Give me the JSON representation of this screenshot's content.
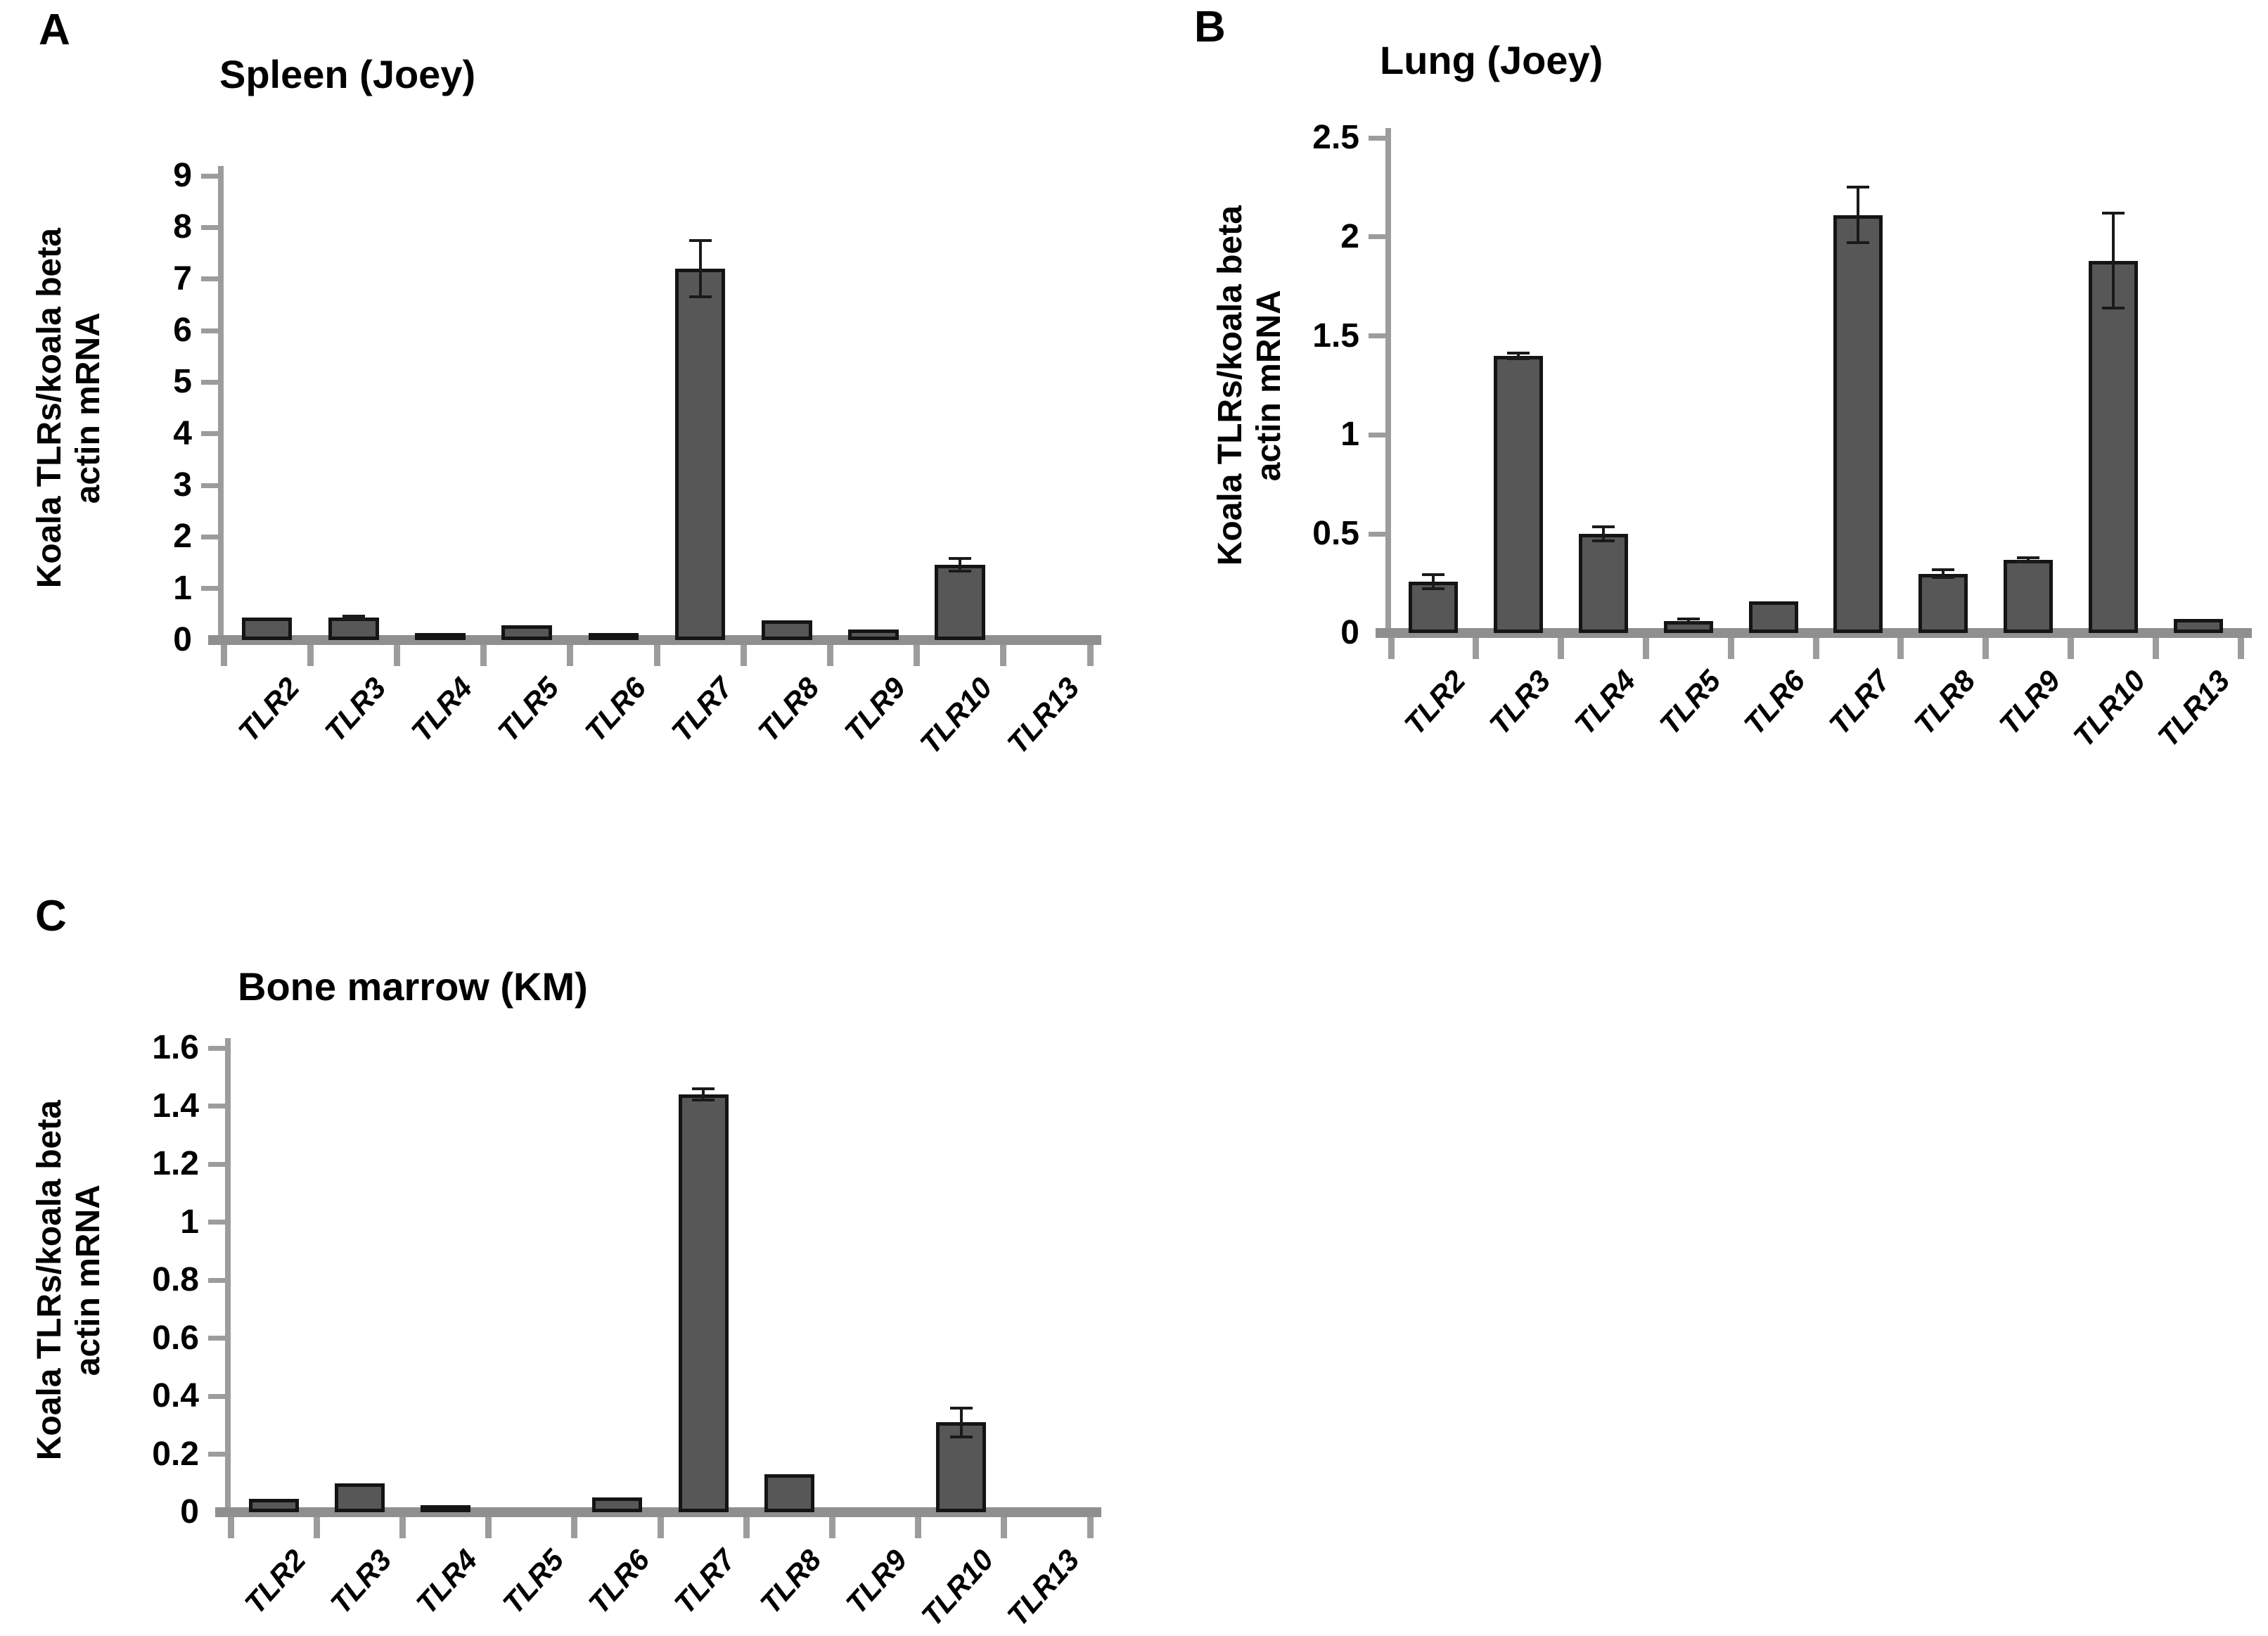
{
  "figure": {
    "panels": [
      {
        "label": "A"
      },
      {
        "label": "B"
      },
      {
        "label": "C"
      }
    ]
  },
  "style": {
    "bar_fill": "#575757",
    "bar_border": "#141414",
    "axis_color": "#9c9c9c",
    "text_color": "#000000",
    "background": "#ffffff"
  },
  "chart_data": [
    {
      "type": "bar",
      "panel": "A",
      "title": "Spleen (Joey)",
      "xlabel": "",
      "ylabel": "Koala TLRs/koala beta actin mRNA",
      "ylabel_lines": [
        "Koala TLRs/koala beta",
        "actin mRNA"
      ],
      "categories": [
        "TLR2",
        "TLR3",
        "TLR4",
        "TLR5",
        "TLR6",
        "TLR7",
        "TLR8",
        "TLR9",
        "TLR10",
        "TLR13"
      ],
      "values": [
        0.44,
        0.44,
        0.13,
        0.29,
        0.1,
        7.2,
        0.38,
        0.21,
        1.46,
        0
      ],
      "errors": [
        0,
        0.03,
        0,
        0,
        0,
        0.55,
        0,
        0,
        0.12,
        0
      ],
      "ylim": [
        0,
        9
      ],
      "yticks": [
        0,
        1,
        2,
        3,
        4,
        5,
        6,
        7,
        8,
        9
      ],
      "ytick_labels": [
        "0",
        "1",
        "2",
        "3",
        "4",
        "5",
        "6",
        "7",
        "8",
        "9"
      ],
      "grid": false,
      "legend": "none"
    },
    {
      "type": "bar",
      "panel": "B",
      "title": "Lung (Joey)",
      "xlabel": "",
      "ylabel": "Koala TLRs/koala beta actin mRNA",
      "ylabel_lines": [
        "Koala TLRs/koala beta",
        "actin mRNA"
      ],
      "categories": [
        "TLR2",
        "TLR3",
        "TLR4",
        "TLR5",
        "TLR6",
        "TLR7",
        "TLR8",
        "TLR9",
        "TLR10",
        "TLR13"
      ],
      "values": [
        0.26,
        1.4,
        0.5,
        0.06,
        0.16,
        2.11,
        0.3,
        0.37,
        1.88,
        0.07
      ],
      "errors": [
        0.035,
        0.015,
        0.035,
        0.012,
        0,
        0.14,
        0.02,
        0.01,
        0.24,
        0
      ],
      "ylim": [
        0,
        2.5
      ],
      "yticks": [
        0,
        0.5,
        1,
        1.5,
        2,
        2.5
      ],
      "ytick_labels": [
        "0",
        "0.5",
        "1",
        "1.5",
        "2",
        "2.5"
      ],
      "grid": false,
      "legend": "none"
    },
    {
      "type": "bar",
      "panel": "C",
      "title": "Bone marrow (KM)",
      "xlabel": "",
      "ylabel": "Koala TLRs/koala beta actin mRNA",
      "ylabel_lines": [
        "Koala TLRs/koala beta",
        "actin mRNA"
      ],
      "categories": [
        "TLR2",
        "TLR3",
        "TLR4",
        "TLR5",
        "TLR6",
        "TLR7",
        "TLR8",
        "TLR9",
        "TLR10",
        "TLR13"
      ],
      "values": [
        0.045,
        0.1,
        0.025,
        0,
        0.05,
        1.44,
        0.13,
        0,
        0.31,
        0
      ],
      "errors": [
        0,
        0,
        0,
        0,
        0,
        0.02,
        0,
        0,
        0.05,
        0
      ],
      "ylim": [
        0,
        1.6
      ],
      "yticks": [
        0,
        0.2,
        0.4,
        0.6,
        0.8,
        1,
        1.2,
        1.4,
        1.6
      ],
      "ytick_labels": [
        "0",
        "0.2",
        "0.4",
        "0.6",
        "0.8",
        "1",
        "1.2",
        "1.4",
        "1.6"
      ],
      "grid": false,
      "legend": "none"
    }
  ]
}
